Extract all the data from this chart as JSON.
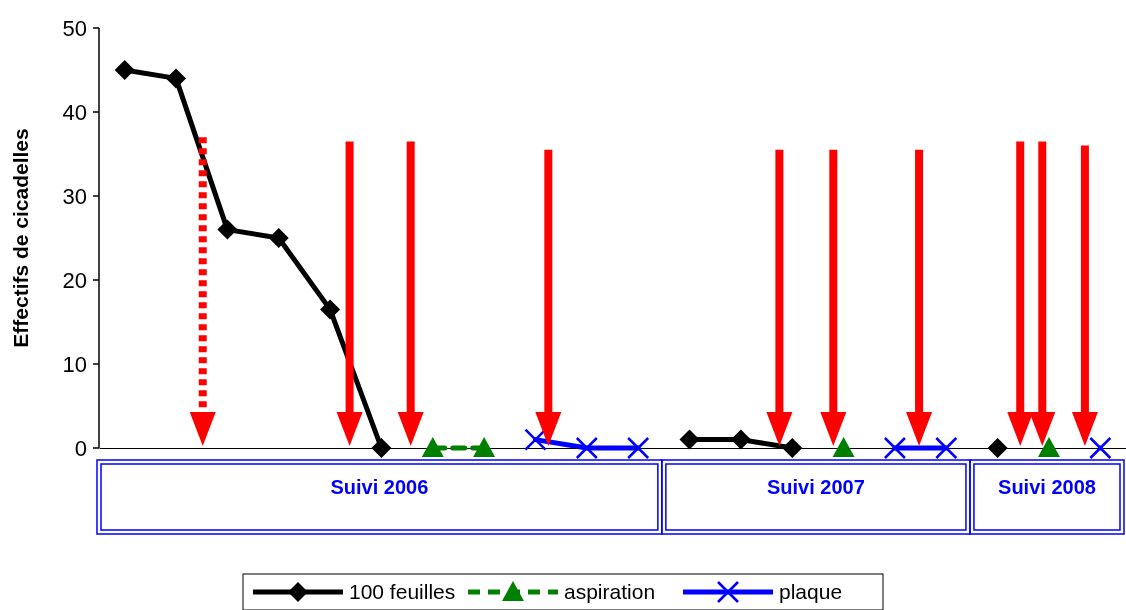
{
  "chart_data": {
    "type": "line",
    "ylabel": "Effectifs de cicadelles",
    "categories": [
      null,
      null,
      null,
      null,
      null,
      null,
      null,
      null,
      null,
      null,
      null,
      null,
      null,
      null,
      null,
      null,
      null,
      null,
      null,
      null
    ],
    "series": [
      {
        "name": "100 feuilles",
        "color": "#000000",
        "marker": "diamond",
        "values": [
          45,
          44,
          26,
          25,
          16.5,
          0,
          null,
          null,
          null,
          null,
          null,
          1,
          1,
          0,
          null,
          null,
          null,
          0,
          null,
          null
        ]
      },
      {
        "name": "aspiration",
        "color": "#008000",
        "marker": "triangle",
        "line_style": "dashed",
        "values": [
          null,
          null,
          null,
          null,
          null,
          null,
          0,
          0,
          null,
          null,
          null,
          null,
          null,
          null,
          0,
          null,
          null,
          null,
          0,
          null
        ]
      },
      {
        "name": "plaque",
        "color": "#0000ff",
        "marker": "cross",
        "values": [
          null,
          null,
          null,
          null,
          null,
          null,
          null,
          null,
          1,
          0,
          0,
          null,
          null,
          null,
          null,
          0,
          0,
          null,
          null,
          0
        ]
      }
    ],
    "ylim": [
      0,
      50
    ],
    "yticks": [
      0,
      10,
      20,
      30,
      40,
      50
    ],
    "grid": false,
    "legend": "bottom",
    "annotations": [
      "Suivi 2006",
      "Suivi 2007",
      "Suivi 2008"
    ]
  }
}
